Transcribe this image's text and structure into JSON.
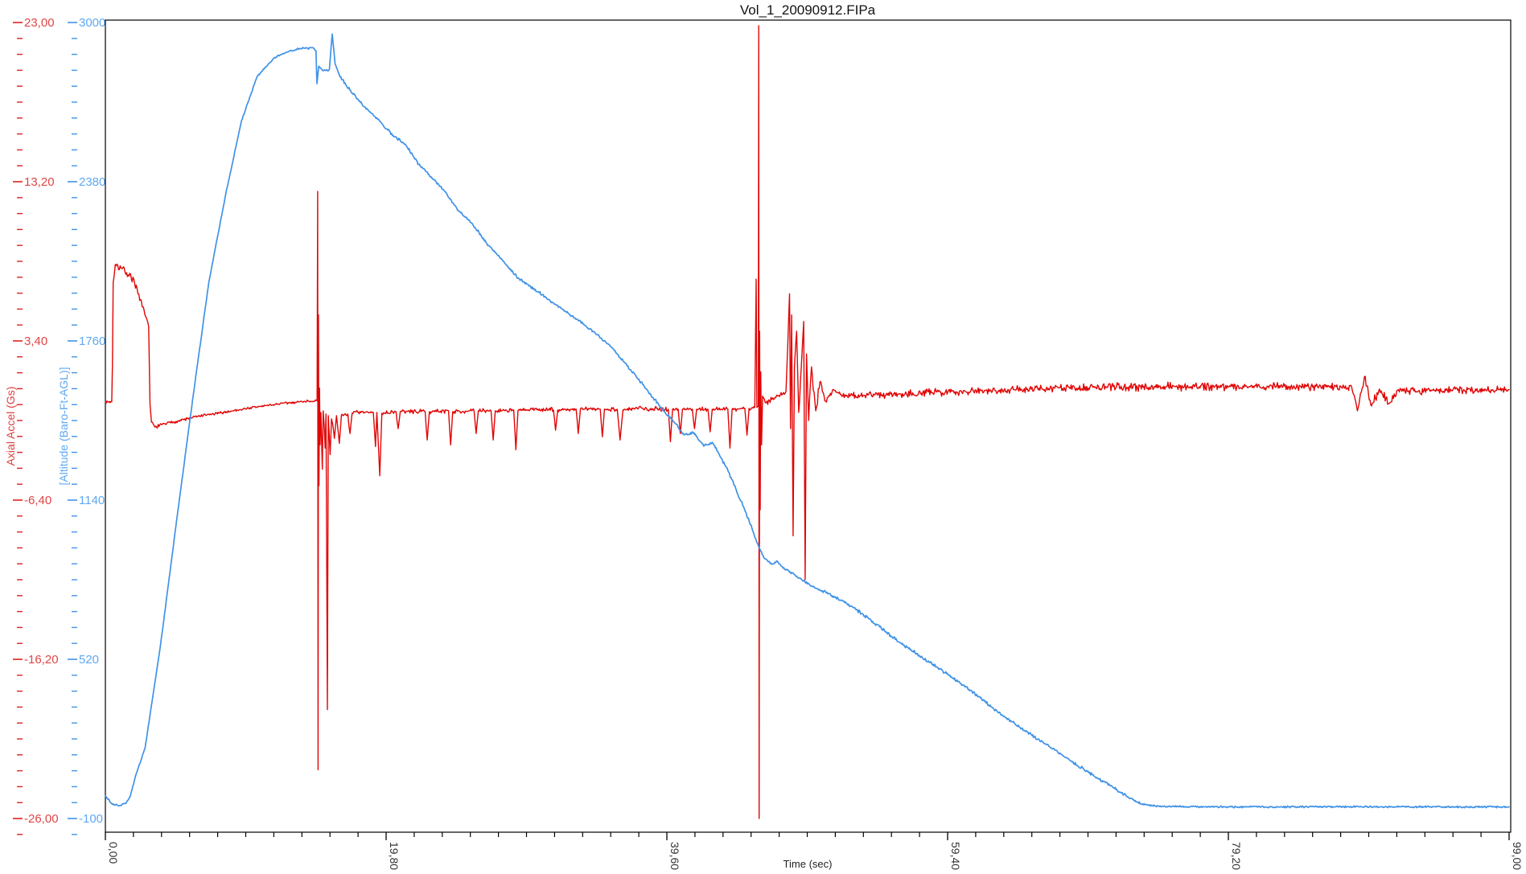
{
  "page": {
    "title": "Vol_1_20090912.FIPa"
  },
  "chart_data": {
    "type": "line",
    "title": "Vol_1_20090912.FIPa",
    "grid": false,
    "legend": "none",
    "x_axis": {
      "title": "Time (sec)",
      "min": 0,
      "max": 99,
      "major_ticks": [
        0,
        19.8,
        39.6,
        59.4,
        79.2,
        99
      ],
      "tick_labels": [
        "0,00",
        "19,80",
        "39,60",
        "59,40",
        "79,20",
        "99,00"
      ],
      "minor_divisions": 10,
      "tick_color": "#000000",
      "label_color": "#333333"
    },
    "y_axis_accel": {
      "title": "Axial Accel (Gs)",
      "unit": "Gs",
      "min": -26,
      "max": 23,
      "major_ticks": [
        23,
        13.2,
        3.4,
        -6.4,
        -16.2,
        -26
      ],
      "tick_labels": [
        "23,00",
        "13,20",
        "3,40",
        "-6,40",
        "-16,20",
        "-26,00"
      ],
      "minor_divisions": 10,
      "tick_color": "#e02020",
      "label_color": "#e04545"
    },
    "y_axis_alt": {
      "title": "[Altitude (Baro-Ft-AGL)]",
      "unit": "Ft-AGL",
      "min": -100,
      "max": 3000,
      "major_ticks": [
        3000,
        2380,
        1760,
        1140,
        520,
        -100
      ],
      "tick_labels": [
        "3000",
        "2380",
        "1760",
        "1140",
        "520",
        "-100"
      ],
      "minor_divisions": 10,
      "tick_color": "#4393e6",
      "label_color": "#5fa8f2"
    },
    "series": [
      {
        "name": "Axial Accel (Gs)",
        "axis": "y_axis_accel",
        "color": "#e10505",
        "points_format": "[time_sec, value_Gs, noise_band_Gs]",
        "points": [
          [
            0,
            -0.35,
            0.08
          ],
          [
            0.45,
            -0.35,
            0.05
          ],
          [
            0.5,
            2,
            0
          ],
          [
            0.55,
            7,
            0.25
          ],
          [
            0.7,
            8.1,
            0.3
          ],
          [
            1.1,
            7.9,
            0.3
          ],
          [
            1.5,
            7.6,
            0.35
          ],
          [
            2,
            7.2,
            0.3
          ],
          [
            2.3,
            6.3,
            0.25
          ],
          [
            2.6,
            5.5,
            0.25
          ],
          [
            2.9,
            4.8,
            0.2
          ],
          [
            3.05,
            4.3,
            0.1
          ],
          [
            3.15,
            -0.5,
            0.05
          ],
          [
            3.25,
            -1.6,
            0.1
          ],
          [
            3.5,
            -1.9,
            0.12
          ],
          [
            4,
            -1.75,
            0.12
          ],
          [
            5,
            -1.55,
            0.12
          ],
          [
            6.5,
            -1.25,
            0.1
          ],
          [
            8,
            -1.05,
            0.1
          ],
          [
            10,
            -0.75,
            0.1
          ],
          [
            12,
            -0.5,
            0.1
          ],
          [
            14,
            -0.32,
            0.08
          ],
          [
            14.93,
            -0.28,
            0.05
          ],
          [
            14.97,
            12.6,
            0
          ],
          [
            15,
            -23,
            0
          ],
          [
            15.03,
            5,
            0
          ],
          [
            15.06,
            -5.5,
            0
          ],
          [
            15.1,
            0.5,
            0
          ],
          [
            15.14,
            -3,
            0
          ],
          [
            15.2,
            -1,
            0.3
          ],
          [
            15.3,
            -4.5,
            0
          ],
          [
            15.36,
            -0.9,
            0.3
          ],
          [
            15.5,
            -3.2,
            0
          ],
          [
            15.56,
            -1.1,
            0.2
          ],
          [
            15.66,
            -19.3,
            0
          ],
          [
            15.72,
            -1.2,
            0.2
          ],
          [
            15.85,
            -3.6,
            0
          ],
          [
            15.95,
            -1.4,
            0.25
          ],
          [
            16.15,
            -2.6,
            0
          ],
          [
            16.3,
            -1.2,
            0.2
          ],
          [
            16.5,
            -2.9,
            0
          ],
          [
            16.65,
            -1.15,
            0.18
          ],
          [
            17.1,
            -1.1,
            0.18
          ],
          [
            17.25,
            -2.3,
            0
          ],
          [
            17.4,
            -1.05,
            0.18
          ],
          [
            18.9,
            -1,
            0.15
          ],
          [
            19.05,
            -3.1,
            0
          ],
          [
            19.15,
            -1,
            0.15
          ],
          [
            19.35,
            -4.9,
            0
          ],
          [
            19.5,
            -1.05,
            0.15
          ],
          [
            20.5,
            -0.95,
            0.15
          ],
          [
            20.65,
            -2,
            0
          ],
          [
            20.8,
            -0.95,
            0.15
          ],
          [
            22.55,
            -0.95,
            0.15
          ],
          [
            22.7,
            -2.7,
            0
          ],
          [
            22.85,
            -0.95,
            0.15
          ],
          [
            24.2,
            -0.9,
            0.15
          ],
          [
            24.35,
            -3,
            0
          ],
          [
            24.5,
            -0.95,
            0.15
          ],
          [
            26,
            -0.9,
            0.15
          ],
          [
            26.15,
            -2.3,
            0
          ],
          [
            26.3,
            -0.9,
            0.15
          ],
          [
            27.2,
            -0.9,
            0.15
          ],
          [
            27.35,
            -2.7,
            0
          ],
          [
            27.5,
            -0.9,
            0.15
          ],
          [
            28.8,
            -0.85,
            0.15
          ],
          [
            28.95,
            -3.3,
            0
          ],
          [
            29.1,
            -0.9,
            0.15
          ],
          [
            30.5,
            -0.8,
            0.18
          ],
          [
            31.6,
            -0.85,
            0.15
          ],
          [
            31.75,
            -2.1,
            0
          ],
          [
            31.9,
            -0.85,
            0.15
          ],
          [
            33.2,
            -0.8,
            0.15
          ],
          [
            33.35,
            -2.3,
            0
          ],
          [
            33.5,
            -0.8,
            0.15
          ],
          [
            34.9,
            -0.8,
            0.15
          ],
          [
            35.05,
            -2.5,
            0
          ],
          [
            35.2,
            -0.8,
            0.15
          ],
          [
            36.1,
            -0.8,
            0.15
          ],
          [
            36.3,
            -2.7,
            0
          ],
          [
            36.5,
            -0.85,
            0.15
          ],
          [
            37.6,
            -0.75,
            0.18
          ],
          [
            39.7,
            -0.8,
            0.15
          ],
          [
            39.85,
            -2.8,
            0
          ],
          [
            40,
            -0.8,
            0.15
          ],
          [
            40.4,
            -0.8,
            0.15
          ],
          [
            40.55,
            -2.3,
            0
          ],
          [
            40.7,
            -0.8,
            0.15
          ],
          [
            41.4,
            -0.8,
            0.15
          ],
          [
            41.55,
            -2,
            0
          ],
          [
            41.7,
            -0.8,
            0.15
          ],
          [
            42.5,
            -0.8,
            0.15
          ],
          [
            42.65,
            -2.2,
            0
          ],
          [
            42.8,
            -0.8,
            0.15
          ],
          [
            43.9,
            -0.8,
            0.15
          ],
          [
            44.05,
            -3.2,
            0
          ],
          [
            44.2,
            -0.8,
            0.15
          ],
          [
            45.1,
            -0.75,
            0.15
          ],
          [
            45.25,
            -2.4,
            0
          ],
          [
            45.4,
            -0.75,
            0.15
          ],
          [
            45.8,
            -0.7,
            0.1
          ],
          [
            45.9,
            7.2,
            0
          ],
          [
            45.95,
            -0.7,
            0.08
          ],
          [
            46.05,
            -0.6,
            0
          ],
          [
            46.08,
            22.8,
            0
          ],
          [
            46.11,
            -26,
            0
          ],
          [
            46.14,
            4,
            0
          ],
          [
            46.18,
            -7,
            0
          ],
          [
            46.22,
            1.5,
            0
          ],
          [
            46.28,
            -3,
            0
          ],
          [
            46.35,
            0,
            0.3
          ],
          [
            46.6,
            -0.4,
            0.25
          ],
          [
            47,
            -0.2,
            0.2
          ],
          [
            47.6,
            0.1,
            0.2
          ],
          [
            48,
            0.3,
            0.2
          ],
          [
            48.25,
            6.3,
            0
          ],
          [
            48.32,
            -2,
            0
          ],
          [
            48.4,
            5,
            0
          ],
          [
            48.5,
            -8.6,
            0
          ],
          [
            48.6,
            1.8,
            0.3
          ],
          [
            48.75,
            4,
            0
          ],
          [
            48.9,
            -1,
            0.3
          ],
          [
            49.25,
            4.6,
            0
          ],
          [
            49.35,
            -11.3,
            0
          ],
          [
            49.45,
            2.6,
            0
          ],
          [
            49.6,
            -1.5,
            0.4
          ],
          [
            49.8,
            1.8,
            0.4
          ],
          [
            50.1,
            -0.9,
            0.4
          ],
          [
            50.4,
            0.9,
            0.35
          ],
          [
            50.8,
            -0.3,
            0.3
          ],
          [
            51.3,
            0.4,
            0.3
          ],
          [
            52,
            0,
            0.28
          ],
          [
            56,
            0.15,
            0.28
          ],
          [
            62,
            0.35,
            0.28
          ],
          [
            68,
            0.5,
            0.3
          ],
          [
            74,
            0.6,
            0.3
          ],
          [
            82,
            0.6,
            0.3
          ],
          [
            87.9,
            0.55,
            0.25
          ],
          [
            88.3,
            -0.9,
            0.3
          ],
          [
            88.8,
            1.2,
            0.3
          ],
          [
            89.3,
            -0.6,
            0.35
          ],
          [
            89.8,
            0.3,
            0.3
          ],
          [
            90.6,
            -0.4,
            0.3
          ],
          [
            91.2,
            0.4,
            0.28
          ],
          [
            93,
            0.35,
            0.25
          ],
          [
            99,
            0.4,
            0.25
          ]
        ]
      },
      {
        "name": "Altitude (Baro-Ft-AGL)",
        "axis": "y_axis_alt",
        "color": "#3f92e6",
        "points_format": "[time_sec, altitude_ft, noise_band_ft]",
        "points": [
          [
            0,
            -12,
            5
          ],
          [
            0.45,
            -42,
            4
          ],
          [
            0.9,
            -50,
            4
          ],
          [
            1.4,
            -42,
            4
          ],
          [
            1.75,
            -15,
            3
          ],
          [
            2.1,
            60,
            3
          ],
          [
            2.8,
            175,
            3
          ],
          [
            3.9,
            580,
            3
          ],
          [
            5,
            1050,
            3
          ],
          [
            6.2,
            1550,
            3
          ],
          [
            7.3,
            1990,
            3
          ],
          [
            8.5,
            2335,
            3
          ],
          [
            9.6,
            2617,
            3
          ],
          [
            10.7,
            2790,
            4
          ],
          [
            11.9,
            2862,
            4
          ],
          [
            13,
            2890,
            4
          ],
          [
            13.8,
            2898,
            5
          ],
          [
            14.55,
            2902,
            5
          ],
          [
            14.85,
            2890,
            0
          ],
          [
            14.92,
            2762,
            0
          ],
          [
            15.05,
            2830,
            0
          ],
          [
            15.35,
            2812,
            6
          ],
          [
            15.8,
            2818,
            5
          ],
          [
            16,
            2955,
            0
          ],
          [
            16.2,
            2840,
            0
          ],
          [
            16.55,
            2788,
            6
          ],
          [
            17.3,
            2735,
            6
          ],
          [
            18.1,
            2682,
            6
          ],
          [
            19.2,
            2624,
            6
          ],
          [
            20.3,
            2560,
            6
          ],
          [
            21.2,
            2522,
            6
          ],
          [
            22.1,
            2448,
            6
          ],
          [
            23,
            2398,
            6
          ],
          [
            23.9,
            2345,
            6
          ],
          [
            24.9,
            2268,
            6
          ],
          [
            25.9,
            2215,
            6
          ],
          [
            26.9,
            2140,
            6
          ],
          [
            27.7,
            2092,
            6
          ],
          [
            29.2,
            2000,
            6
          ],
          [
            30.6,
            1948,
            6
          ],
          [
            31.5,
            1912,
            6
          ],
          [
            32.3,
            1882,
            6
          ],
          [
            33.4,
            1838,
            6
          ],
          [
            34.5,
            1794,
            6
          ],
          [
            35.6,
            1740,
            7
          ],
          [
            36.8,
            1663,
            7
          ],
          [
            37.9,
            1590,
            7
          ],
          [
            39.1,
            1506,
            7
          ],
          [
            40,
            1452,
            7
          ],
          [
            40.8,
            1394,
            6
          ],
          [
            41.5,
            1403,
            6
          ],
          [
            42.2,
            1350,
            6
          ],
          [
            42.8,
            1365,
            6
          ],
          [
            43.9,
            1256,
            7
          ],
          [
            45,
            1115,
            7
          ],
          [
            45.6,
            1030,
            6
          ],
          [
            46.1,
            955,
            6
          ],
          [
            46.5,
            912,
            6
          ],
          [
            47,
            890,
            6
          ],
          [
            47.4,
            902,
            6
          ],
          [
            47.8,
            875,
            6
          ],
          [
            48.2,
            864,
            6
          ],
          [
            49.9,
            802,
            7
          ],
          [
            51,
            777,
            7
          ],
          [
            52.7,
            724,
            7
          ],
          [
            54,
            672,
            7
          ],
          [
            56.1,
            583,
            7
          ],
          [
            59.5,
            458,
            7
          ],
          [
            61,
            400,
            7
          ],
          [
            62.9,
            317,
            7
          ],
          [
            64.5,
            255,
            7
          ],
          [
            66.3,
            191,
            7
          ],
          [
            68,
            128,
            7
          ],
          [
            69.7,
            66,
            7
          ],
          [
            71,
            25,
            6
          ],
          [
            72,
            -12,
            5
          ],
          [
            73.1,
            -44,
            4
          ],
          [
            74.3,
            -53,
            4
          ],
          [
            80,
            -55,
            4
          ],
          [
            90,
            -54,
            4
          ],
          [
            99,
            -55,
            4
          ]
        ]
      }
    ]
  }
}
